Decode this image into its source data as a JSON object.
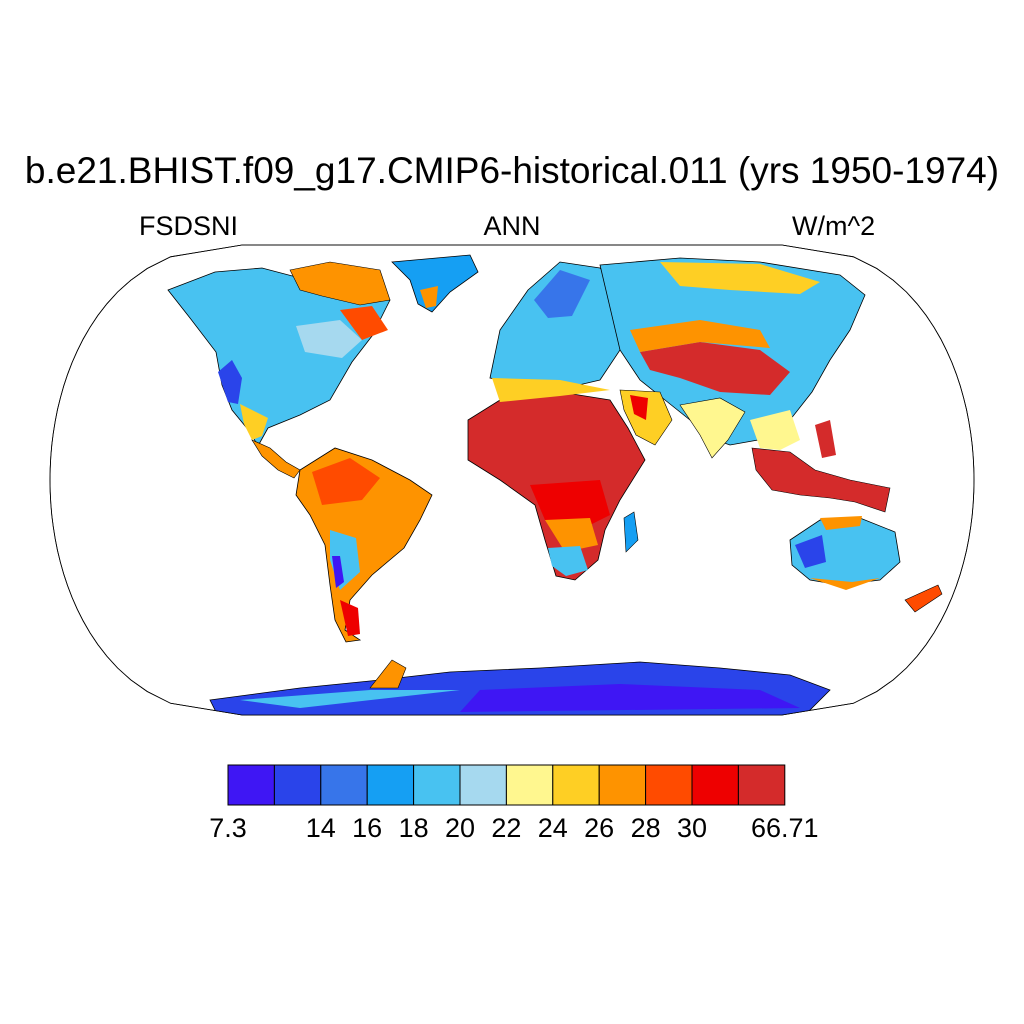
{
  "header": {
    "title": "b.e21.BHIST.f09_g17.CMIP6-historical.011 (yrs 1950-1974)",
    "variable": "FSDSNI",
    "season": "ANN",
    "units": "W/m^2"
  },
  "map": {
    "projection": "robinson",
    "background_color": "#ffffff",
    "coastline_color": "#000000"
  },
  "colorbar": {
    "colors": [
      "#3f16f4",
      "#2a44ea",
      "#3775ea",
      "#159ff3",
      "#48c2f1",
      "#a6d9ef",
      "#fff78f",
      "#fecf24",
      "#fe9300",
      "#ff4b00",
      "#ee0000",
      "#d42b2b"
    ],
    "tick_labels": [
      "7.3",
      "14",
      "16",
      "18",
      "20",
      "22",
      "24",
      "26",
      "28",
      "30",
      "66.71"
    ],
    "tick_boundaries": [
      0,
      2,
      3,
      4,
      5,
      6,
      7,
      8,
      9,
      10,
      12
    ]
  }
}
